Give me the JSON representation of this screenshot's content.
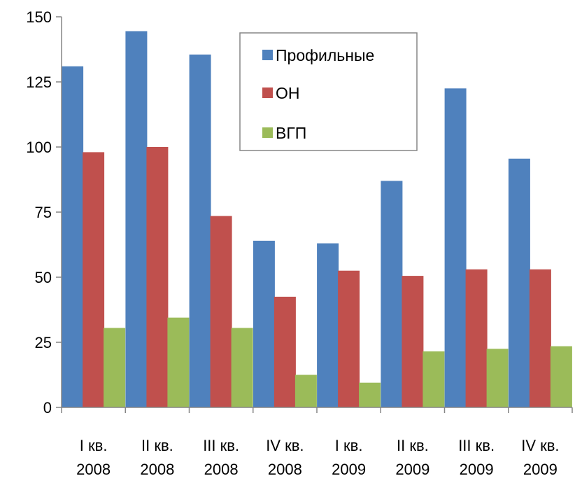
{
  "chart_data": {
    "type": "bar",
    "categories": [
      [
        "I кв.",
        "2008"
      ],
      [
        "II кв.",
        "2008"
      ],
      [
        "III кв.",
        "2008"
      ],
      [
        "IV кв.",
        "2008"
      ],
      [
        "I кв.",
        "2009"
      ],
      [
        "II кв.",
        "2009"
      ],
      [
        "III кв.",
        "2009"
      ],
      [
        "IV кв.",
        "2009"
      ]
    ],
    "series": [
      {
        "name": "Профильные",
        "color": "#4F81BD",
        "values": [
          131,
          144.5,
          135.5,
          64,
          63,
          87,
          122.5,
          95.5
        ]
      },
      {
        "name": "ОН",
        "color": "#C0504D",
        "values": [
          98,
          100,
          73.5,
          42.5,
          52.5,
          50.5,
          53,
          53
        ]
      },
      {
        "name": "ВГП",
        "color": "#9BBB59",
        "values": [
          30.5,
          34.5,
          30.5,
          12.5,
          9.5,
          21.5,
          22.5,
          23.5
        ]
      }
    ],
    "ylim": [
      0,
      150
    ],
    "yticks": [
      0,
      25,
      50,
      75,
      100,
      125,
      150
    ],
    "ytick_labels": [
      "0",
      "25",
      "50",
      "75",
      "100",
      "125",
      "150"
    ],
    "grid": false,
    "legend_position": "top-center",
    "title": "",
    "xlabel": "",
    "ylabel": ""
  }
}
